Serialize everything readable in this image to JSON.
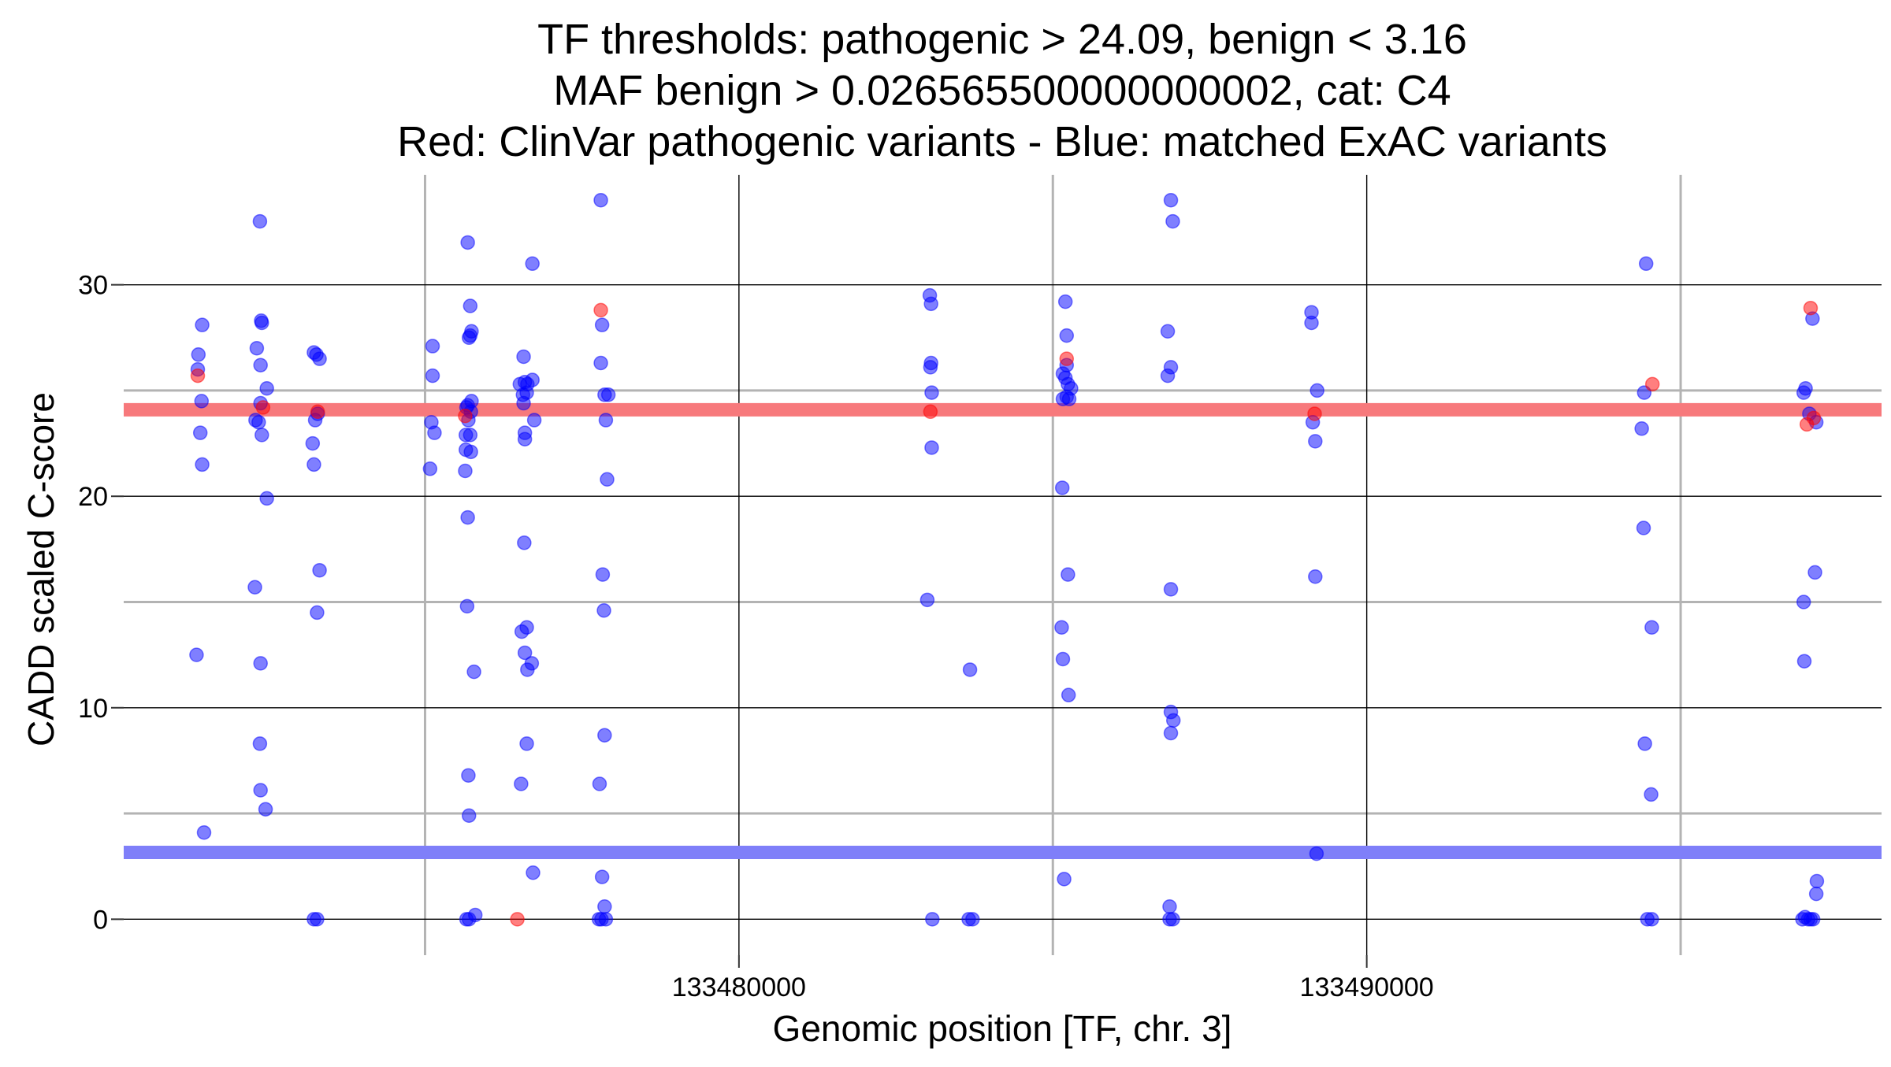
{
  "chart_data": {
    "type": "scatter",
    "title": [
      "TF thresholds: pathogenic > 24.09, benign < 3.16",
      "MAF benign > 0.026565500000000002, cat: C4",
      "Red: ClinVar pathogenic variants - Blue: matched ExAC variants"
    ],
    "xlabel": "Genomic position [TF, chr. 3]",
    "ylabel": "CADD scaled C-score",
    "xlim": [
      133470200,
      133498200
    ],
    "ylim": [
      -1.7,
      35.2
    ],
    "x_ticks": [
      133480000,
      133490000
    ],
    "x_tick_labels": [
      "133480000",
      "133490000"
    ],
    "x_minor_ticks": [
      133475000,
      133485000,
      133495000
    ],
    "y_ticks": [
      0,
      10,
      20,
      30
    ],
    "y_tick_labels": [
      "0",
      "10",
      "20",
      "30"
    ],
    "y_minor_ticks": [
      5,
      15,
      25
    ],
    "grid": true,
    "thresholds": [
      {
        "name": "pathogenic",
        "value": 24.09,
        "color": "#f7797c"
      },
      {
        "name": "benign",
        "value": 3.16,
        "color": "#7f7ff9"
      }
    ],
    "colors": {
      "pathogenic": "#ff0000",
      "benign": "#0000ff"
    },
    "series": [
      {
        "name": "ClinVar pathogenic variants",
        "color": "#ff0000",
        "points": [
          [
            133471380,
            25.7
          ],
          [
            133472420,
            24.2
          ],
          [
            133473290,
            24.0
          ],
          [
            133475640,
            23.8
          ],
          [
            133476470,
            0.0
          ],
          [
            133477800,
            28.8
          ],
          [
            133483050,
            24.0
          ],
          [
            133485220,
            26.5
          ],
          [
            133489170,
            23.9
          ],
          [
            133494550,
            25.3
          ],
          [
            133497070,
            28.9
          ],
          [
            133497010,
            23.4
          ],
          [
            133497120,
            23.7
          ]
        ]
      },
      {
        "name": "matched ExAC variants",
        "color": "#0000ff",
        "points": [
          [
            133471390,
            26.7
          ],
          [
            133471450,
            28.1
          ],
          [
            133471380,
            26.0
          ],
          [
            133471440,
            24.5
          ],
          [
            133471420,
            23.0
          ],
          [
            133471450,
            21.5
          ],
          [
            133471360,
            12.5
          ],
          [
            133471480,
            4.1
          ],
          [
            133472320,
            27.0
          ],
          [
            133472400,
            28.2
          ],
          [
            133472390,
            28.3
          ],
          [
            133472380,
            26.2
          ],
          [
            133472480,
            25.1
          ],
          [
            133472380,
            24.4
          ],
          [
            133472300,
            23.6
          ],
          [
            133472350,
            23.5
          ],
          [
            133472400,
            22.9
          ],
          [
            133472480,
            19.9
          ],
          [
            133472290,
            15.7
          ],
          [
            133472380,
            12.1
          ],
          [
            133472370,
            8.3
          ],
          [
            133472380,
            6.1
          ],
          [
            133472460,
            5.2
          ],
          [
            133472370,
            33.0
          ],
          [
            133473230,
            26.8
          ],
          [
            133473270,
            26.7
          ],
          [
            133473320,
            26.5
          ],
          [
            133473290,
            23.9
          ],
          [
            133473250,
            23.6
          ],
          [
            133473210,
            22.5
          ],
          [
            133473230,
            21.5
          ],
          [
            133473320,
            16.5
          ],
          [
            133473280,
            14.5
          ],
          [
            133473230,
            0.0
          ],
          [
            133473280,
            0.0
          ],
          [
            133475120,
            27.1
          ],
          [
            133475120,
            25.7
          ],
          [
            133475100,
            23.5
          ],
          [
            133475150,
            23.0
          ],
          [
            133475080,
            21.3
          ],
          [
            133475680,
            32.0
          ],
          [
            133475720,
            29.0
          ],
          [
            133475740,
            27.8
          ],
          [
            133475700,
            27.5
          ],
          [
            133475720,
            27.6
          ],
          [
            133475680,
            24.3
          ],
          [
            133475740,
            24.5
          ],
          [
            133475660,
            24.2
          ],
          [
            133475730,
            24.0
          ],
          [
            133475690,
            23.6
          ],
          [
            133475650,
            22.9
          ],
          [
            133475720,
            22.9
          ],
          [
            133475650,
            22.2
          ],
          [
            133475730,
            22.1
          ],
          [
            133475640,
            21.2
          ],
          [
            133475680,
            19.0
          ],
          [
            133475670,
            14.8
          ],
          [
            133475780,
            11.7
          ],
          [
            133475690,
            6.8
          ],
          [
            133475700,
            4.9
          ],
          [
            133475800,
            0.2
          ],
          [
            133475660,
            0.0
          ],
          [
            133475700,
            0.0
          ],
          [
            133476570,
            26.6
          ],
          [
            133476590,
            25.4
          ],
          [
            133476510,
            25.3
          ],
          [
            133476630,
            25.3
          ],
          [
            133476710,
            25.5
          ],
          [
            133476560,
            24.8
          ],
          [
            133476620,
            24.9
          ],
          [
            133476570,
            24.4
          ],
          [
            133476740,
            23.6
          ],
          [
            133476590,
            23.0
          ],
          [
            133476590,
            22.7
          ],
          [
            133476580,
            17.8
          ],
          [
            133476620,
            13.8
          ],
          [
            133476540,
            13.6
          ],
          [
            133476590,
            12.6
          ],
          [
            133476700,
            12.1
          ],
          [
            133476630,
            11.8
          ],
          [
            133476620,
            8.3
          ],
          [
            133476530,
            6.4
          ],
          [
            133476710,
            31.0
          ],
          [
            133476720,
            2.2
          ],
          [
            133477800,
            34.0
          ],
          [
            133477820,
            28.1
          ],
          [
            133477800,
            26.3
          ],
          [
            133477860,
            24.8
          ],
          [
            133477920,
            24.8
          ],
          [
            133477880,
            23.6
          ],
          [
            133477900,
            20.8
          ],
          [
            133477830,
            16.3
          ],
          [
            133477850,
            14.6
          ],
          [
            133477860,
            8.7
          ],
          [
            133477780,
            6.4
          ],
          [
            133477820,
            2.0
          ],
          [
            133477860,
            0.6
          ],
          [
            133477770,
            0.0
          ],
          [
            133477810,
            0.0
          ],
          [
            133477880,
            0.0
          ],
          [
            133483040,
            29.5
          ],
          [
            133483060,
            29.1
          ],
          [
            133483060,
            26.3
          ],
          [
            133483050,
            26.1
          ],
          [
            133483070,
            24.9
          ],
          [
            133483070,
            22.3
          ],
          [
            133483000,
            15.1
          ],
          [
            133483080,
            0.0
          ],
          [
            133483680,
            11.8
          ],
          [
            133483660,
            0.0
          ],
          [
            133483720,
            0.0
          ],
          [
            133485200,
            29.2
          ],
          [
            133485220,
            27.6
          ],
          [
            133485160,
            25.8
          ],
          [
            133485220,
            26.2
          ],
          [
            133485200,
            25.6
          ],
          [
            133485240,
            25.3
          ],
          [
            133485290,
            25.1
          ],
          [
            133485220,
            24.7
          ],
          [
            133485160,
            24.6
          ],
          [
            133485260,
            24.6
          ],
          [
            133485150,
            20.4
          ],
          [
            133485240,
            16.3
          ],
          [
            133485140,
            13.8
          ],
          [
            133485160,
            12.3
          ],
          [
            133485250,
            10.6
          ],
          [
            133485180,
            1.9
          ],
          [
            133486880,
            34.0
          ],
          [
            133486910,
            33.0
          ],
          [
            133486830,
            27.8
          ],
          [
            133486880,
            26.1
          ],
          [
            133486830,
            25.7
          ],
          [
            133486880,
            15.6
          ],
          [
            133486880,
            9.8
          ],
          [
            133486920,
            9.4
          ],
          [
            133486880,
            8.8
          ],
          [
            133486860,
            0.6
          ],
          [
            133486860,
            0.0
          ],
          [
            133486910,
            0.0
          ],
          [
            133489120,
            28.7
          ],
          [
            133489120,
            28.2
          ],
          [
            133489210,
            25.0
          ],
          [
            133489140,
            23.5
          ],
          [
            133489180,
            22.6
          ],
          [
            133489180,
            16.2
          ],
          [
            133489200,
            3.1
          ],
          [
            133494450,
            31.0
          ],
          [
            133494420,
            24.9
          ],
          [
            133494380,
            23.2
          ],
          [
            133494410,
            18.5
          ],
          [
            133494540,
            13.8
          ],
          [
            133494430,
            8.3
          ],
          [
            133494530,
            5.9
          ],
          [
            133494470,
            0.0
          ],
          [
            133494540,
            0.0
          ],
          [
            133496990,
            25.1
          ],
          [
            133496960,
            24.9
          ],
          [
            133497100,
            28.4
          ],
          [
            133497050,
            23.9
          ],
          [
            133497160,
            23.5
          ],
          [
            133496960,
            15.0
          ],
          [
            133497140,
            16.4
          ],
          [
            133496970,
            12.2
          ],
          [
            133497170,
            1.8
          ],
          [
            133497160,
            1.2
          ],
          [
            133496980,
            0.1
          ],
          [
            133497030,
            0.0
          ],
          [
            133497070,
            0.0
          ],
          [
            133497110,
            0.0
          ],
          [
            133496940,
            0.0
          ]
        ]
      }
    ]
  }
}
